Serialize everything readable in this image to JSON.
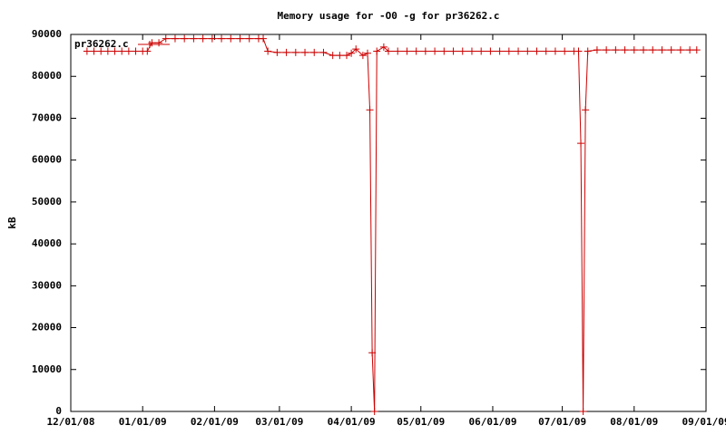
{
  "chart_data": {
    "type": "line",
    "title": "Memory usage for -O0 -g for pr36262.c",
    "y_label": "kB",
    "xlim": [
      "2008-12-01",
      "2009-09-01"
    ],
    "xticks": [
      {
        "value": "2008-12-01",
        "label": "12/01/08"
      },
      {
        "value": "2009-01-01",
        "label": "01/01/09"
      },
      {
        "value": "2009-02-01",
        "label": "02/01/09"
      },
      {
        "value": "2009-03-01",
        "label": "03/01/09"
      },
      {
        "value": "2009-04-01",
        "label": "04/01/09"
      },
      {
        "value": "2009-05-01",
        "label": "05/01/09"
      },
      {
        "value": "2009-06-01",
        "label": "06/01/09"
      },
      {
        "value": "2009-07-01",
        "label": "07/01/09"
      },
      {
        "value": "2009-08-01",
        "label": "08/01/09"
      },
      {
        "value": "2009-09-01",
        "label": "09/01/09"
      }
    ],
    "ylim": [
      0,
      90000
    ],
    "yticks": [
      0,
      10000,
      20000,
      30000,
      40000,
      50000,
      60000,
      70000,
      80000,
      90000
    ],
    "grid": false,
    "legend": "top-left",
    "x": [
      "2008-12-08",
      "2008-12-11",
      "2008-12-14",
      "2008-12-17",
      "2008-12-20",
      "2008-12-23",
      "2008-12-26",
      "2008-12-29",
      "2009-01-01",
      "2009-01-03",
      "2009-01-05",
      "2009-01-08",
      "2009-01-11",
      "2009-01-15",
      "2009-01-19",
      "2009-01-23",
      "2009-01-27",
      "2009-01-31",
      "2009-02-04",
      "2009-02-08",
      "2009-02-12",
      "2009-02-16",
      "2009-02-20",
      "2009-02-22",
      "2009-02-24",
      "2009-02-28",
      "2009-03-04",
      "2009-03-08",
      "2009-03-12",
      "2009-03-16",
      "2009-03-20",
      "2009-03-24",
      "2009-03-27",
      "2009-03-30",
      "2009-04-01",
      "2009-04-03",
      "2009-04-06",
      "2009-04-08",
      "2009-04-09",
      "2009-04-10",
      "2009-04-11",
      "2009-04-12",
      "2009-04-15",
      "2009-04-17",
      "2009-04-21",
      "2009-04-25",
      "2009-04-29",
      "2009-05-03",
      "2009-05-07",
      "2009-05-11",
      "2009-05-15",
      "2009-05-19",
      "2009-05-23",
      "2009-05-27",
      "2009-05-31",
      "2009-06-04",
      "2009-06-08",
      "2009-06-12",
      "2009-06-16",
      "2009-06-20",
      "2009-06-24",
      "2009-06-28",
      "2009-07-02",
      "2009-07-06",
      "2009-07-08",
      "2009-07-09",
      "2009-07-10",
      "2009-07-11",
      "2009-07-12",
      "2009-07-16",
      "2009-07-20",
      "2009-07-24",
      "2009-07-28",
      "2009-08-01",
      "2009-08-05",
      "2009-08-09",
      "2009-08-13",
      "2009-08-17",
      "2009-08-21",
      "2009-08-25",
      "2009-08-28"
    ],
    "series": [
      {
        "name": "pr36262.c",
        "color": "#cc0000",
        "values": [
          86000,
          86000,
          86000,
          86000,
          86000,
          86000,
          86000,
          86000,
          86000,
          86000,
          88000,
          88000,
          89000,
          89000,
          89000,
          89000,
          89000,
          89000,
          89000,
          89000,
          89000,
          89000,
          89000,
          89000,
          86000,
          85700,
          85700,
          85700,
          85700,
          85700,
          85700,
          85000,
          85000,
          85000,
          85500,
          86500,
          85000,
          85500,
          72000,
          14000,
          0,
          86000,
          87000,
          86000,
          86000,
          86000,
          86000,
          86000,
          86000,
          86000,
          86000,
          86000,
          86000,
          86000,
          86000,
          86000,
          86000,
          86000,
          86000,
          86000,
          86000,
          86000,
          86000,
          86000,
          86000,
          64000,
          0,
          72000,
          86000,
          86300,
          86300,
          86300,
          86300,
          86300,
          86300,
          86300,
          86300,
          86300,
          86300,
          86300,
          86300
        ]
      }
    ]
  }
}
